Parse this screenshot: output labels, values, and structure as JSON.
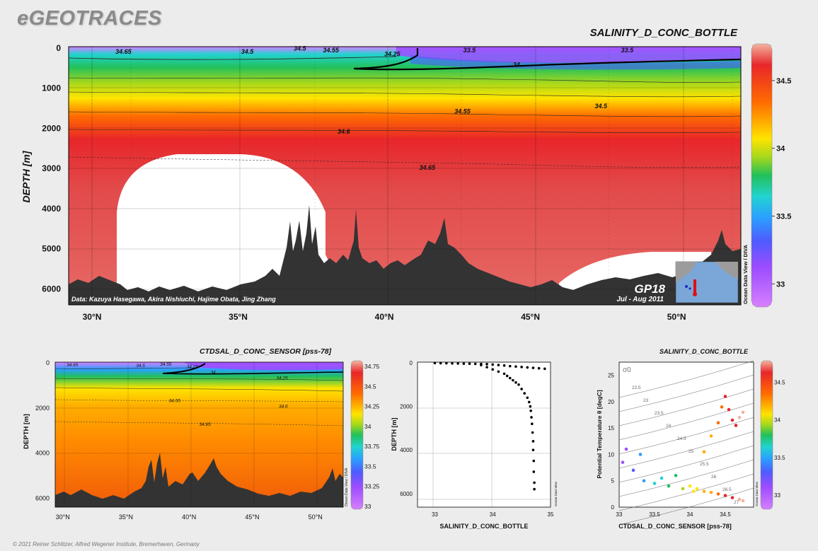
{
  "brand": "eGEOTRACES",
  "footer": "© 2021 Reiner Schlitzer, Alfred Wegener Institute, Bremerhaven, Germany",
  "colors": {
    "scale": [
      "#d580ff",
      "#9d4cff",
      "#4f5bff",
      "#2aa0ff",
      "#22d3d0",
      "#22c05a",
      "#a6d81c",
      "#ffe400",
      "#ffae00",
      "#ff6a00",
      "#e8262a",
      "#f2b4a0"
    ],
    "bathymetry": "#333333",
    "background": "#ececec"
  },
  "chart_data": [
    {
      "type": "heatmap",
      "id": "main-section",
      "title": "SALINITY_D_CONC_BOTTLE",
      "ylabel": "DEPTH [m]",
      "xlabel": "",
      "x_ticks": [
        "30°N",
        "35°N",
        "40°N",
        "45°N",
        "50°N"
      ],
      "x_tick_values": [
        30,
        35,
        40,
        45,
        50
      ],
      "y_ticks": [
        "0",
        "1000",
        "2000",
        "3000",
        "4000",
        "5000",
        "6000"
      ],
      "y_tick_values": [
        0,
        1000,
        2000,
        3000,
        4000,
        5000,
        6000
      ],
      "xlim": [
        29.2,
        52.2
      ],
      "ylim": [
        0,
        6400
      ],
      "colorbar": {
        "ticks": [
          "34.5",
          "34",
          "33.5",
          "33"
        ],
        "values": [
          34.5,
          34,
          33.5,
          33
        ],
        "range": [
          32.85,
          34.75
        ]
      },
      "contour_labels": [
        {
          "text": "34.65",
          "x": 30.8,
          "y": 120
        },
        {
          "text": "34.5",
          "x": 35.1,
          "y": 120
        },
        {
          "text": "34.5",
          "x": 36.9,
          "y": 40
        },
        {
          "text": "34.55",
          "x": 37.9,
          "y": 90
        },
        {
          "text": "34.25",
          "x": 40.0,
          "y": 180
        },
        {
          "text": "33.5",
          "x": 42.7,
          "y": 90
        },
        {
          "text": "33.5",
          "x": 48.1,
          "y": 90
        },
        {
          "text": "34",
          "x": 44.4,
          "y": 450
        },
        {
          "text": "34.5",
          "x": 47.2,
          "y": 1470
        },
        {
          "text": "34.55",
          "x": 42.4,
          "y": 1600
        },
        {
          "text": "34.6",
          "x": 38.4,
          "y": 2100
        },
        {
          "text": "34.65",
          "x": 41.2,
          "y": 3000
        }
      ],
      "annotations": {
        "data_credit": "Data: Kazuya Hasegawa, Akira Nishiuchi, Hajime Obata, Jing Zhang",
        "cruise": "GP18",
        "period": "Jul - Aug 2011",
        "side_label": "Ocean Data View / DIVA"
      }
    },
    {
      "type": "heatmap",
      "id": "sensor-section",
      "title": "CTDSAL_D_CONC_SENSOR [pss-78]",
      "ylabel": "DEPTH [m]",
      "xlabel": "",
      "x_ticks": [
        "30°N",
        "35°N",
        "40°N",
        "45°N",
        "50°N"
      ],
      "x_tick_values": [
        30,
        35,
        40,
        45,
        50
      ],
      "y_ticks": [
        "0",
        "2000",
        "4000",
        "6000"
      ],
      "y_tick_values": [
        0,
        2000,
        4000,
        6000
      ],
      "xlim": [
        29.4,
        52.2
      ],
      "ylim": [
        0,
        6400
      ],
      "colorbar": {
        "ticks": [
          "34.75",
          "34.5",
          "34.25",
          "34",
          "33.75",
          "33.5",
          "33.25",
          "33"
        ],
        "values": [
          34.75,
          34.5,
          34.25,
          34,
          33.75,
          33.5,
          33.25,
          33
        ],
        "range": [
          33,
          34.75
        ]
      },
      "contour_labels": [
        {
          "text": "34.65",
          "x": 30.3,
          "y": 120
        },
        {
          "text": "34.5",
          "x": 35.8,
          "y": 150
        },
        {
          "text": "34.55",
          "x": 37.7,
          "y": 100
        },
        {
          "text": "34.25",
          "x": 39.8,
          "y": 200
        },
        {
          "text": "34",
          "x": 41.7,
          "y": 450
        },
        {
          "text": "34.25",
          "x": 46.9,
          "y": 700
        },
        {
          "text": "34.55",
          "x": 38.4,
          "y": 1700
        },
        {
          "text": "34.6",
          "x": 47.1,
          "y": 1950
        },
        {
          "text": "34.65",
          "x": 40.8,
          "y": 2750
        }
      ],
      "annotations": {
        "side_label": "Ocean Data View / DIVA"
      }
    },
    {
      "type": "scatter",
      "id": "profile",
      "title": "",
      "xlabel": "SALINITY_D_CONC_BOTTLE",
      "ylabel": "DEPTH [m]",
      "x_ticks": [
        "33",
        "34",
        "35"
      ],
      "x_tick_values": [
        33,
        34,
        35
      ],
      "y_ticks": [
        "0",
        "2000",
        "4000",
        "6000"
      ],
      "y_tick_values": [
        0,
        2000,
        4000,
        6000
      ],
      "xlim": [
        32.7,
        35.0
      ],
      "ylim": [
        0,
        6300
      ],
      "annotations": {
        "side_label": "Ocean Data View"
      },
      "points": [
        [
          33.0,
          10
        ],
        [
          33.1,
          15
        ],
        [
          33.2,
          20
        ],
        [
          33.3,
          25
        ],
        [
          33.4,
          30
        ],
        [
          33.5,
          35
        ],
        [
          33.6,
          40
        ],
        [
          33.7,
          45
        ],
        [
          33.8,
          50
        ],
        [
          33.9,
          60
        ],
        [
          34.0,
          80
        ],
        [
          34.1,
          100
        ],
        [
          34.2,
          120
        ],
        [
          34.3,
          150
        ],
        [
          34.4,
          170
        ],
        [
          34.5,
          190
        ],
        [
          34.6,
          210
        ],
        [
          34.7,
          230
        ],
        [
          34.8,
          250
        ],
        [
          34.9,
          270
        ],
        [
          33.8,
          100
        ],
        [
          33.9,
          200
        ],
        [
          34.0,
          300
        ],
        [
          34.1,
          400
        ],
        [
          34.2,
          500
        ],
        [
          34.25,
          600
        ],
        [
          34.3,
          700
        ],
        [
          34.35,
          800
        ],
        [
          34.4,
          900
        ],
        [
          34.45,
          1000
        ],
        [
          34.5,
          1200
        ],
        [
          34.55,
          1400
        ],
        [
          34.6,
          1600
        ],
        [
          34.63,
          1800
        ],
        [
          34.65,
          2000
        ],
        [
          34.66,
          2200
        ],
        [
          34.67,
          2500
        ],
        [
          34.68,
          2800
        ],
        [
          34.69,
          3200
        ],
        [
          34.7,
          3600
        ],
        [
          34.7,
          4000
        ],
        [
          34.71,
          4500
        ],
        [
          34.71,
          5000
        ],
        [
          34.72,
          5500
        ],
        [
          34.72,
          5800
        ]
      ]
    },
    {
      "type": "scatter",
      "id": "ts-diagram",
      "title": "SALINITY_D_CONC_BOTTLE",
      "xlabel": "CTDSAL_D_CONC_SENSOR [pss-78]",
      "ylabel": "Potential Temperature θ [degC]",
      "x_ticks": [
        "33",
        "33.5",
        "34",
        "34.5"
      ],
      "x_tick_values": [
        33,
        33.5,
        34,
        34.5
      ],
      "y_ticks": [
        "0",
        "5",
        "10",
        "15",
        "20",
        "25"
      ],
      "y_tick_values": [
        0,
        5,
        10,
        15,
        20,
        25
      ],
      "xlim": [
        33.0,
        34.9
      ],
      "ylim": [
        0,
        27.5
      ],
      "colorbar": {
        "ticks": [
          "34.5",
          "34",
          "33.5",
          "33"
        ],
        "values": [
          34.5,
          34,
          33.5,
          33
        ],
        "range": [
          32.85,
          34.75
        ]
      },
      "sigma_label": "σ0",
      "isopycnal_labels": [
        "22.5",
        "23",
        "23.5",
        "24",
        "24.5",
        "25",
        "25.5",
        "26",
        "26.5",
        "27"
      ],
      "annotations": {
        "side_label": "Ocean Data View"
      },
      "points": [
        [
          33.1,
          11
        ],
        [
          33.05,
          8.5
        ],
        [
          33.3,
          10
        ],
        [
          33.2,
          7
        ],
        [
          33.35,
          5
        ],
        [
          33.5,
          4.5
        ],
        [
          33.6,
          5.5
        ],
        [
          33.7,
          4
        ],
        [
          33.8,
          6
        ],
        [
          33.9,
          3.5
        ],
        [
          34.0,
          4
        ],
        [
          34.05,
          3
        ],
        [
          34.1,
          3.5
        ],
        [
          34.2,
          3
        ],
        [
          34.3,
          2.8
        ],
        [
          34.4,
          2.5
        ],
        [
          34.5,
          2.2
        ],
        [
          34.6,
          1.8
        ],
        [
          34.7,
          1.5
        ],
        [
          34.75,
          1.2
        ],
        [
          34.2,
          10.5
        ],
        [
          34.3,
          13.5
        ],
        [
          34.4,
          16
        ],
        [
          34.45,
          19
        ],
        [
          34.5,
          21
        ],
        [
          34.55,
          18.5
        ],
        [
          34.6,
          16.5
        ],
        [
          34.65,
          15.5
        ],
        [
          34.7,
          17
        ],
        [
          34.75,
          18
        ]
      ]
    }
  ]
}
